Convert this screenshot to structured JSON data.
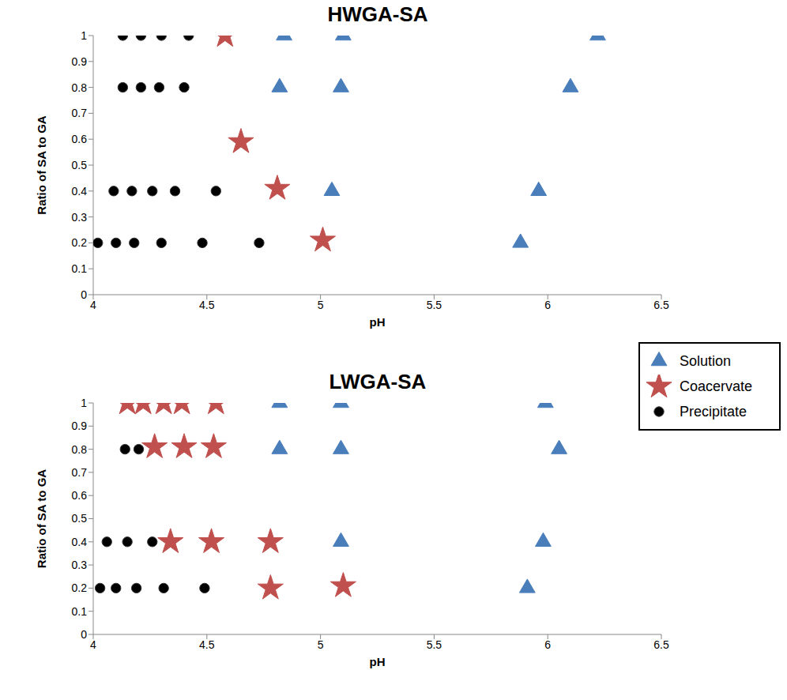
{
  "chart_data": [
    {
      "type": "scatter",
      "title": "HWGA-SA",
      "x_label": "pH",
      "y_label": "Ratio of SA to GA",
      "xlim": [
        4,
        6.5
      ],
      "xticks": [
        4,
        4.5,
        5,
        5.5,
        6,
        6.5
      ],
      "ylim": [
        0,
        1
      ],
      "yticks": [
        0,
        0.1,
        0.2,
        0.3,
        0.4,
        0.5,
        0.6,
        0.7,
        0.8,
        0.9,
        1
      ],
      "series": [
        {
          "name": "Solution",
          "color": "#4a7ebb",
          "marker": "triangle",
          "x": [
            4.84,
            5.1,
            6.22,
            4.82,
            5.09,
            6.1,
            5.05,
            5.96,
            5.88
          ],
          "values": [
            1,
            1,
            1,
            0.8,
            0.8,
            0.8,
            0.4,
            0.4,
            0.2
          ]
        },
        {
          "name": "Coacervate",
          "color": "#c0504d",
          "marker": "star",
          "x": [
            4.58,
            4.65,
            4.81,
            5.01
          ],
          "values": [
            1,
            0.59,
            0.41,
            0.21
          ]
        },
        {
          "name": "Precipitate",
          "color": "#000000",
          "marker": "circle",
          "x": [
            4.13,
            4.21,
            4.3,
            4.42,
            4.13,
            4.21,
            4.29,
            4.4,
            4.09,
            4.17,
            4.26,
            4.36,
            4.54,
            4.02,
            4.1,
            4.18,
            4.3,
            4.48,
            4.73
          ],
          "values": [
            1,
            1,
            1,
            1,
            0.8,
            0.8,
            0.8,
            0.8,
            0.4,
            0.4,
            0.4,
            0.4,
            0.4,
            0.2,
            0.2,
            0.2,
            0.2,
            0.2,
            0.2
          ]
        }
      ]
    },
    {
      "type": "scatter",
      "title": "LWGA-SA",
      "x_label": "pH",
      "y_label": "Ratio of SA to GA",
      "xlim": [
        4,
        6.5
      ],
      "xticks": [
        4,
        4.5,
        5,
        5.5,
        6,
        6.5
      ],
      "ylim": [
        0,
        1
      ],
      "yticks": [
        0,
        0.1,
        0.2,
        0.3,
        0.4,
        0.5,
        0.6,
        0.7,
        0.8,
        0.9,
        1
      ],
      "legend": "right",
      "series": [
        {
          "name": "Solution",
          "color": "#4a7ebb",
          "marker": "triangle",
          "x": [
            4.82,
            5.09,
            5.99,
            4.82,
            5.09,
            6.05,
            5.09,
            5.98,
            5.91
          ],
          "values": [
            1,
            1,
            1,
            0.8,
            0.8,
            0.8,
            0.4,
            0.4,
            0.2
          ]
        },
        {
          "name": "Coacervate",
          "color": "#c0504d",
          "marker": "star",
          "x": [
            4.15,
            4.22,
            4.31,
            4.39,
            4.54,
            4.27,
            4.4,
            4.53,
            4.34,
            4.52,
            4.78,
            4.78,
            5.1
          ],
          "values": [
            1,
            1,
            1,
            1,
            1,
            0.81,
            0.81,
            0.81,
            0.4,
            0.4,
            0.4,
            0.2,
            0.21
          ]
        },
        {
          "name": "Precipitate",
          "color": "#000000",
          "marker": "circle",
          "x": [
            4.14,
            4.2,
            4.06,
            4.15,
            4.26,
            4.03,
            4.1,
            4.19,
            4.31,
            4.49
          ],
          "values": [
            0.8,
            0.8,
            0.4,
            0.4,
            0.4,
            0.2,
            0.2,
            0.2,
            0.2,
            0.2
          ]
        }
      ]
    }
  ]
}
